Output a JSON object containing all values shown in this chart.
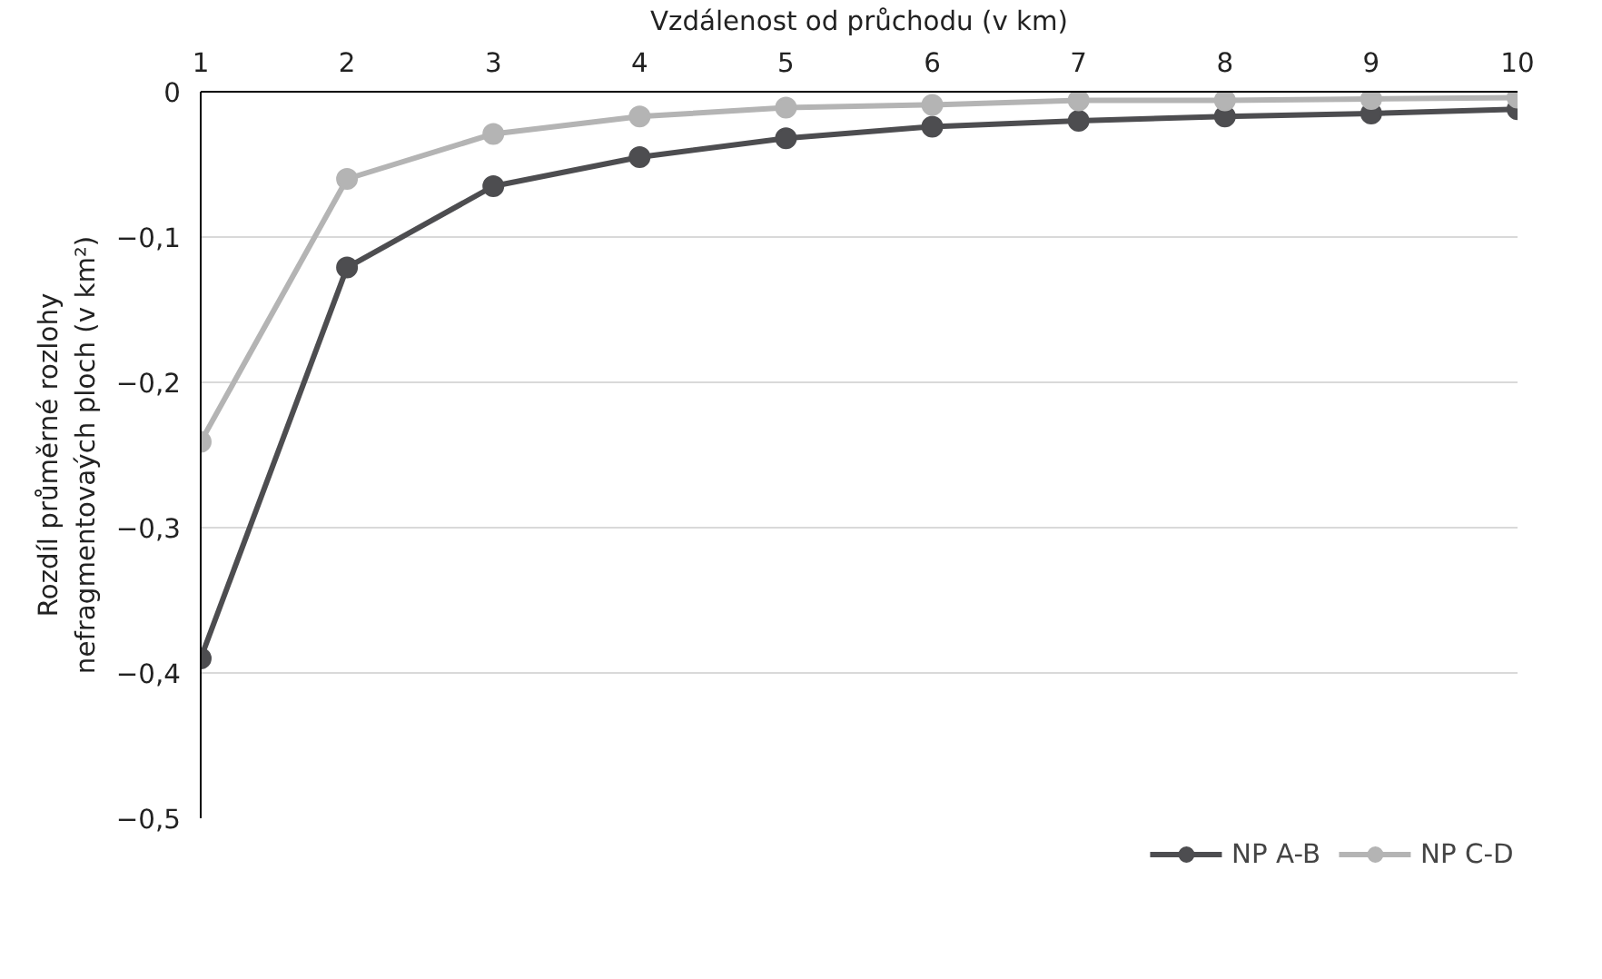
{
  "chart_data": {
    "type": "line",
    "xlabel": "Vzdálenost od průchodu (v km)",
    "ylabel": "Rozdíl průměrné rozlohy nefragmentovaých ploch (v km²)",
    "x": [
      1,
      2,
      3,
      4,
      5,
      6,
      7,
      8,
      9,
      10
    ],
    "xlim": [
      1,
      10
    ],
    "xticks": [
      1,
      2,
      3,
      4,
      5,
      6,
      7,
      8,
      9,
      10
    ],
    "ylim": [
      -0.5,
      0
    ],
    "yticks": [
      0,
      {
        "value": -0.1,
        "label": "−0,1"
      },
      {
        "value": -0.2,
        "label": "−0,2"
      },
      {
        "value": -0.3,
        "label": "−0,3"
      },
      {
        "value": -0.4,
        "label": "−0,4"
      },
      {
        "value": -0.5,
        "label": "−0,5"
      }
    ],
    "series": [
      {
        "name": "NP A-B",
        "color": "#4d4d50",
        "values": [
          -0.39,
          -0.121,
          -0.065,
          -0.045,
          -0.032,
          -0.024,
          -0.02,
          -0.017,
          -0.015,
          -0.012
        ]
      },
      {
        "name": "NP C-D",
        "color": "#b4b4b4",
        "values": [
          -0.241,
          -0.06,
          -0.029,
          -0.017,
          -0.011,
          -0.009,
          -0.006,
          -0.006,
          -0.005,
          -0.004
        ]
      }
    ],
    "grid": "y",
    "legend": "bottom",
    "marker": "circle",
    "line_style": "solid"
  }
}
